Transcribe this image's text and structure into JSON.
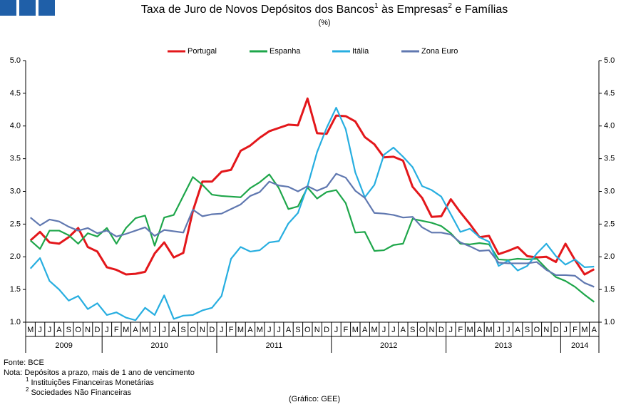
{
  "chart_data": {
    "type": "line",
    "title_parts": [
      "Taxa de Juro de Novos Depósitos dos Bancos",
      "1",
      " às Empresas",
      "2",
      " e Famílias"
    ],
    "subtitle": "(%)",
    "categories": [
      "M",
      "J",
      "J",
      "A",
      "S",
      "O",
      "N",
      "D",
      "J",
      "F",
      "M",
      "A",
      "M",
      "J",
      "J",
      "A",
      "S",
      "O",
      "N",
      "D",
      "J",
      "F",
      "M",
      "A",
      "M",
      "J",
      "J",
      "A",
      "S",
      "O",
      "N",
      "D",
      "J",
      "F",
      "M",
      "A",
      "M",
      "J",
      "J",
      "A",
      "S",
      "O",
      "N",
      "D",
      "J",
      "F",
      "M",
      "A",
      "M",
      "J",
      "J",
      "A",
      "S",
      "O",
      "N",
      "D",
      "J",
      "F",
      "M",
      "A"
    ],
    "years": [
      "2009",
      "2010",
      "2011",
      "2012",
      "2013",
      "2014"
    ],
    "ylim": [
      1,
      5
    ],
    "yticks": [
      {
        "value": 1,
        "label": "1.0"
      },
      {
        "value": 1.5,
        "label": "1.5"
      },
      {
        "value": 2,
        "label": "2.0"
      },
      {
        "value": 2.5,
        "label": "2.5"
      },
      {
        "value": 3,
        "label": "3.0"
      },
      {
        "value": 3.5,
        "label": "3.5"
      },
      {
        "value": 4,
        "label": "4.0"
      },
      {
        "value": 4.5,
        "label": "4.5"
      },
      {
        "value": 5,
        "label": "5.0"
      }
    ],
    "y2lim": [
      1,
      5
    ],
    "y2ticks": [
      {
        "value": 1,
        "label": "1.0"
      },
      {
        "value": 1.5,
        "label": "1.5"
      },
      {
        "value": 2,
        "label": "2.0"
      },
      {
        "value": 2.5,
        "label": "2.5"
      },
      {
        "value": 3,
        "label": "3.0"
      },
      {
        "value": 3.5,
        "label": "3.5"
      },
      {
        "value": 4,
        "label": "4.0"
      },
      {
        "value": 4.5,
        "label": "4.5"
      },
      {
        "value": 5,
        "label": "5.0"
      }
    ],
    "grid": false,
    "legend": "top",
    "series": [
      {
        "name": "Portugal",
        "color": "#e3171b",
        "values": [
          2.25,
          2.38,
          2.22,
          2.2,
          2.3,
          2.44,
          2.15,
          2.08,
          1.84,
          1.8,
          1.73,
          1.74,
          1.77,
          2.05,
          2.22,
          1.99,
          2.06,
          2.7,
          3.15,
          3.15,
          3.3,
          3.33,
          3.62,
          3.7,
          3.82,
          3.92,
          3.97,
          4.02,
          4.01,
          4.42,
          3.89,
          3.88,
          4.16,
          4.15,
          4.07,
          3.83,
          3.72,
          3.52,
          3.53,
          3.47,
          3.07,
          2.9,
          2.61,
          2.62,
          2.88,
          2.68,
          2.5,
          2.3,
          2.32,
          2.04,
          2.09,
          2.15,
          2.01,
          1.99,
          2.0,
          1.92,
          2.2,
          1.95,
          1.73,
          1.81
        ]
      },
      {
        "name": "Espanha",
        "color": "#1ea64a",
        "values": [
          2.25,
          2.12,
          2.4,
          2.4,
          2.33,
          2.2,
          2.36,
          2.31,
          2.44,
          2.2,
          2.44,
          2.59,
          2.63,
          2.17,
          2.6,
          2.64,
          2.93,
          3.22,
          3.1,
          2.95,
          2.93,
          2.92,
          2.91,
          3.05,
          3.14,
          3.26,
          3.05,
          2.73,
          2.77,
          3.06,
          2.89,
          2.99,
          3.02,
          2.82,
          2.37,
          2.38,
          2.09,
          2.1,
          2.18,
          2.2,
          2.58,
          2.55,
          2.52,
          2.47,
          2.36,
          2.2,
          2.19,
          2.21,
          2.19,
          1.96,
          1.95,
          1.97,
          1.96,
          1.97,
          1.82,
          1.69,
          1.63,
          1.54,
          1.42,
          1.31
        ]
      },
      {
        "name": "Itália",
        "color": "#27aee0",
        "values": [
          1.82,
          1.98,
          1.63,
          1.5,
          1.33,
          1.4,
          1.2,
          1.29,
          1.11,
          1.15,
          1.07,
          1.03,
          1.22,
          1.11,
          1.41,
          1.05,
          1.1,
          1.11,
          1.18,
          1.22,
          1.4,
          1.97,
          2.15,
          2.08,
          2.1,
          2.22,
          2.24,
          2.51,
          2.67,
          3.08,
          3.6,
          3.97,
          4.28,
          3.95,
          3.29,
          2.91,
          3.1,
          3.56,
          3.67,
          3.53,
          3.37,
          3.08,
          3.02,
          2.92,
          2.65,
          2.38,
          2.43,
          2.3,
          2.23,
          1.86,
          1.94,
          1.79,
          1.86,
          2.05,
          2.2,
          2.01,
          1.88,
          1.96,
          1.84,
          1.85
        ]
      },
      {
        "name": "Zona Euro",
        "color": "#6078b0",
        "values": [
          2.6,
          2.48,
          2.57,
          2.54,
          2.46,
          2.4,
          2.44,
          2.36,
          2.4,
          2.31,
          2.35,
          2.4,
          2.45,
          2.32,
          2.41,
          2.39,
          2.37,
          2.72,
          2.62,
          2.65,
          2.66,
          2.73,
          2.8,
          2.93,
          2.99,
          3.15,
          3.09,
          3.07,
          3.0,
          3.08,
          3.01,
          3.07,
          3.27,
          3.21,
          3.01,
          2.9,
          2.67,
          2.66,
          2.64,
          2.6,
          2.61,
          2.45,
          2.37,
          2.37,
          2.34,
          2.22,
          2.16,
          2.09,
          2.1,
          1.91,
          1.9,
          1.9,
          1.9,
          1.92,
          1.8,
          1.72,
          1.72,
          1.71,
          1.6,
          1.54
        ]
      }
    ],
    "source": "Fonte: BCE",
    "note": "Nota: Depósitos a prazo, mais de 1 ano de vencimento",
    "footnotes": [
      {
        "mark": "1",
        "text": "Instituições Financeiras Monetárias"
      },
      {
        "mark": "2",
        "text": "Sociedades Não Financeiras"
      }
    ],
    "credit": "(Gráfico: GEE)"
  }
}
